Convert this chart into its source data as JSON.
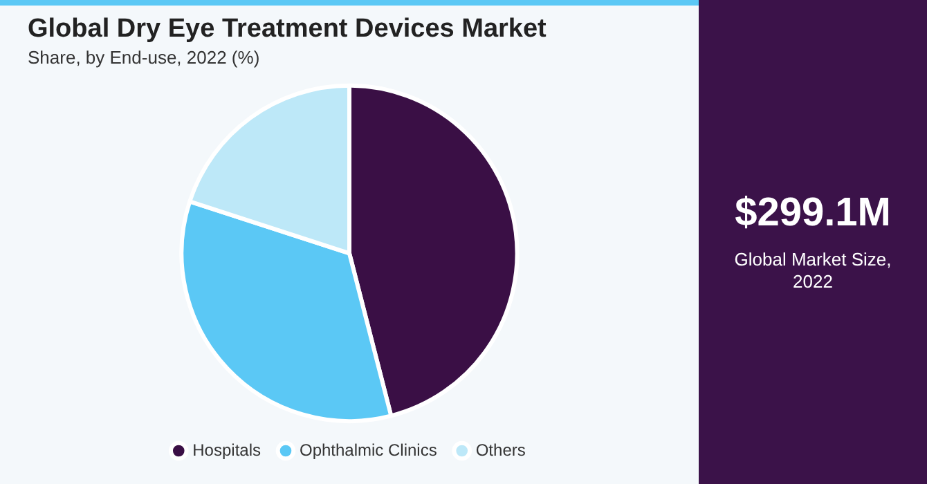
{
  "chart_data": {
    "type": "pie",
    "title": "Global Dry Eye Treatment Devices Market",
    "subtitle": "Share, by End-use, 2022 (%)",
    "categories": [
      "Hospitals",
      "Ophthalmic Clinics",
      "Others"
    ],
    "values": [
      46,
      34,
      20
    ],
    "colors": [
      "#3a0f45",
      "#5bc8f5",
      "#bde8f8"
    ],
    "legend": "bottom",
    "annotations": [
      "$299.1M",
      "Global Market Size, 2022"
    ]
  }
}
